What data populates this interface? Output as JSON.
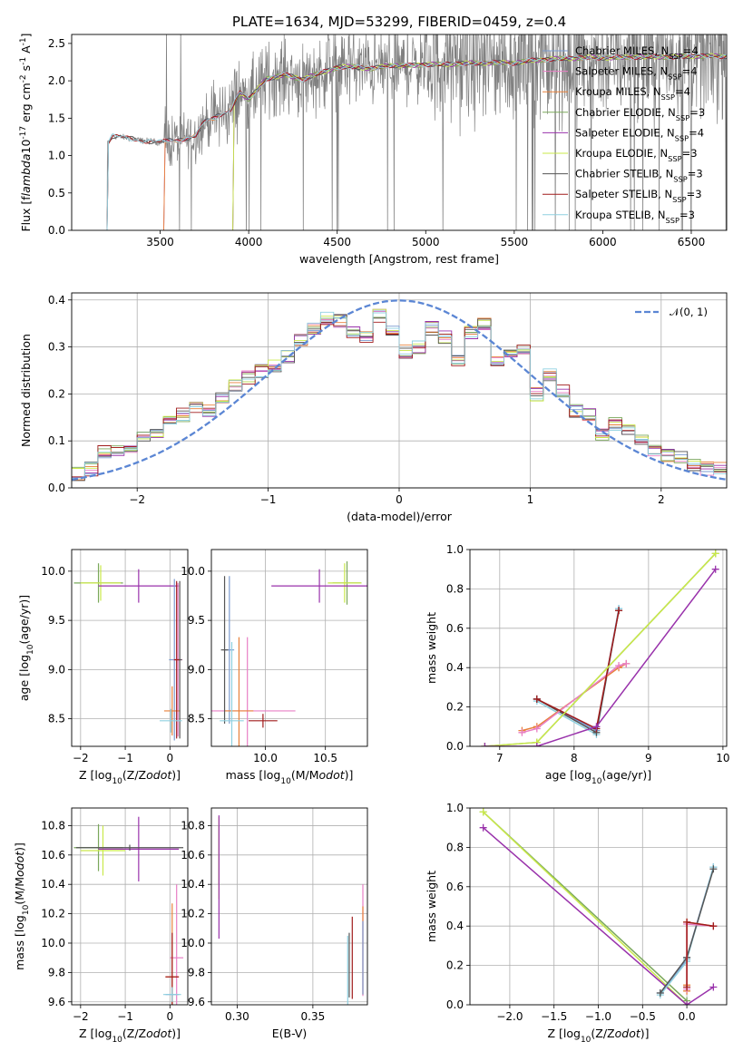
{
  "figure_title": "PLATE=1634, MJD=53299, FIBERID=0459, z=0.4",
  "colors": {
    "Chabrier MILES": "#7b9bd0",
    "Salpeter MILES": "#e87fc5",
    "Kroupa MILES": "#e8803a",
    "Chabrier ELODIE": "#7aa85a",
    "Salpeter ELODIE": "#9932ab",
    "Kroupa ELODIE": "#c9e84a",
    "Chabrier STELIB": "#555555",
    "Salpeter STELIB": "#a01c1c",
    "Kroupa STELIB": "#8fd0e0",
    "data": "#808080",
    "gauss": "#5b86d4"
  },
  "chart_data": [
    {
      "id": "spectrum",
      "type": "line",
      "title": "PLATE=1634, MJD=53299, FIBERID=0459, z=0.4",
      "xlabel": "wavelength [Angstrom, rest frame]",
      "ylabel": "Flux [f$_\\lambda$10$^{-17}$ erg cm$^{-2}$ s$^{-1}$ A$^{-1}$]",
      "xlim": [
        3000,
        6700
      ],
      "ylim": [
        0,
        2.62
      ],
      "xticks": [
        3500,
        4000,
        4500,
        5000,
        5500,
        6000,
        6500
      ],
      "yticks": [
        0.0,
        0.5,
        1.0,
        1.5,
        2.0,
        2.5
      ],
      "grid": false,
      "legend_position": "upper-right",
      "legend": [
        {
          "name": "Chabrier MILES",
          "label": "Chabrier MILES, N",
          "sub": "SSP",
          "rest": "=4"
        },
        {
          "name": "Salpeter MILES",
          "label": "Salpeter MILES, N",
          "sub": "SSP",
          "rest": "=4"
        },
        {
          "name": "Kroupa MILES",
          "label": "Kroupa MILES, N",
          "sub": "SSP",
          "rest": "=4"
        },
        {
          "name": "Chabrier ELODIE",
          "label": "Chabrier ELODIE, N",
          "sub": "SSP",
          "rest": "=3"
        },
        {
          "name": "Salpeter ELODIE",
          "label": "Salpeter ELODIE, N",
          "sub": "SSP",
          "rest": "=4"
        },
        {
          "name": "Kroupa ELODIE",
          "label": "Kroupa ELODIE, N",
          "sub": "SSP",
          "rest": "=3"
        },
        {
          "name": "Chabrier STELIB",
          "label": "Chabrier STELIB, N",
          "sub": "SSP",
          "rest": "=3"
        },
        {
          "name": "Salpeter STELIB",
          "label": "Salpeter STELIB, N",
          "sub": "SSP",
          "rest": "=3"
        },
        {
          "name": "Kroupa STELIB",
          "label": "Kroupa STELIB, N",
          "sub": "SSP",
          "rest": "=3"
        }
      ],
      "continuum_nodes": {
        "x": [
          3200,
          3230,
          3300,
          3400,
          3500,
          3600,
          3700,
          3750,
          3800,
          3900,
          3950,
          4000,
          4050,
          4100,
          4200,
          4300,
          4400,
          4500,
          4600,
          4700,
          4800,
          4900,
          5000,
          5100,
          5200,
          5300,
          5400,
          5500,
          5600,
          5700,
          5800,
          5900,
          6000,
          6100,
          6200,
          6300,
          6400,
          6500,
          6600
        ],
        "y": [
          1.15,
          1.26,
          1.24,
          1.2,
          1.18,
          1.21,
          1.26,
          1.45,
          1.5,
          1.62,
          1.85,
          1.75,
          1.88,
          2.03,
          2.08,
          2.02,
          2.1,
          2.18,
          2.19,
          2.16,
          2.21,
          2.2,
          2.22,
          2.22,
          2.23,
          2.24,
          2.24,
          2.24,
          2.27,
          2.29,
          2.3,
          2.31,
          2.31,
          2.31,
          2.32,
          2.32,
          2.32,
          2.33,
          2.33
        ]
      },
      "model_start_x": {
        "Chabrier MILES": 3520,
        "Salpeter MILES": 3520,
        "Kroupa MILES": 3520,
        "Chabrier ELODIE": 3910,
        "Salpeter ELODIE": 3910,
        "Kroupa ELODIE": 3910,
        "Chabrier STELIB": 3200,
        "Salpeter STELIB": 3200,
        "Kroupa STELIB": 3200
      },
      "data_range_x": [
        3200,
        6700
      ]
    },
    {
      "id": "residuals",
      "type": "line",
      "xlabel": "(data-model)/error",
      "ylabel": "Normed distribution",
      "xlim": [
        -2.5,
        2.5
      ],
      "ylim": [
        0,
        0.415
      ],
      "xticks": [
        -2,
        -1,
        0,
        1,
        2
      ],
      "yticks": [
        0.0,
        0.1,
        0.2,
        0.3,
        0.4
      ],
      "grid": true,
      "legend_position": "upper-right",
      "legend": [
        {
          "name": "gauss",
          "label": "𝒩(0, 1)"
        }
      ],
      "bins": {
        "edges_start": -2.5,
        "width": 0.1,
        "counts": [
          0.03,
          0.04,
          0.075,
          0.08,
          0.085,
          0.11,
          0.12,
          0.14,
          0.155,
          0.17,
          0.165,
          0.19,
          0.215,
          0.235,
          0.25,
          0.26,
          0.28,
          0.315,
          0.34,
          0.36,
          0.355,
          0.33,
          0.32,
          0.365,
          0.335,
          0.29,
          0.3,
          0.34,
          0.32,
          0.275,
          0.33,
          0.35,
          0.275,
          0.28,
          0.3,
          0.2,
          0.24,
          0.205,
          0.165,
          0.155,
          0.115,
          0.135,
          0.12,
          0.1,
          0.08,
          0.07,
          0.065,
          0.05,
          0.04,
          0.04
        ]
      }
    },
    {
      "id": "age_vs_Z",
      "type": "scatter",
      "xlabel": "Z [log$_{10}$(Z/Z$_\\odot$)]",
      "ylabel": "age  [log$_{10}$(age/yr)]",
      "xlim": [
        -2.2,
        0.4
      ],
      "ylim": [
        8.22,
        10.22
      ],
      "xticks": [
        -2,
        -1,
        0
      ],
      "yticks": [
        8.5,
        9.0,
        9.5,
        10.0
      ],
      "grid": true,
      "errorbars": [
        {
          "name": "Chabrier ELODIE",
          "x": -1.6,
          "y": 9.88,
          "xerr": 0.55,
          "yerr": 0.2
        },
        {
          "name": "Kroupa ELODIE",
          "x": -1.55,
          "y": 9.88,
          "xerr": 0.45,
          "yerr": 0.18
        },
        {
          "name": "Salpeter ELODIE",
          "x": -0.7,
          "y": 9.85,
          "xerr": 0.9,
          "yerr": 0.17
        },
        {
          "name": "Chabrier MILES",
          "x": 0.1,
          "y": 9.1,
          "xerr": 0.12,
          "yerr": 0.82
        },
        {
          "name": "Salpeter MILES",
          "x": 0.18,
          "y": 9.1,
          "xerr": 0.1,
          "yerr": 0.78
        },
        {
          "name": "Kroupa MILES",
          "x": 0.05,
          "y": 8.58,
          "xerr": 0.18,
          "yerr": 0.25
        },
        {
          "name": "Chabrier STELIB",
          "x": 0.22,
          "y": 9.1,
          "xerr": 0.05,
          "yerr": 0.8
        },
        {
          "name": "Salpeter STELIB",
          "x": 0.15,
          "y": 9.1,
          "xerr": 0.06,
          "yerr": 0.8
        },
        {
          "name": "Kroupa STELIB",
          "x": 0.02,
          "y": 8.48,
          "xerr": 0.25,
          "yerr": 0.12
        }
      ]
    },
    {
      "id": "age_vs_mass",
      "type": "scatter",
      "xlabel": "mass [log$_{10}$(M/M$_\\odot$)]",
      "ylabel": "",
      "xlim": [
        9.55,
        10.85
      ],
      "ylim": [
        8.22,
        10.22
      ],
      "xticks": [
        10.0,
        10.5
      ],
      "yticks": [
        8.5,
        9.0,
        9.5,
        10.0
      ],
      "grid": true,
      "errorbars": [
        {
          "name": "Chabrier ELODIE",
          "x": 10.68,
          "y": 9.88,
          "xerr": 0.12,
          "yerr": 0.22
        },
        {
          "name": "Kroupa ELODIE",
          "x": 10.66,
          "y": 9.88,
          "xerr": 0.14,
          "yerr": 0.2
        },
        {
          "name": "Salpeter ELODIE",
          "x": 10.45,
          "y": 9.85,
          "xerr": 0.4,
          "yerr": 0.17
        },
        {
          "name": "Chabrier MILES",
          "x": 9.7,
          "y": 9.2,
          "xerr": 0.04,
          "yerr": 0.75
        },
        {
          "name": "Salpeter MILES",
          "x": 9.85,
          "y": 8.58,
          "xerr": 0.4,
          "yerr": 0.75
        },
        {
          "name": "Kroupa MILES",
          "x": 9.78,
          "y": 8.58,
          "xerr": 0.12,
          "yerr": 0.75
        },
        {
          "name": "Chabrier STELIB",
          "x": 9.66,
          "y": 9.2,
          "xerr": 0.03,
          "yerr": 0.75
        },
        {
          "name": "Salpeter STELIB",
          "x": 9.98,
          "y": 8.48,
          "xerr": 0.12,
          "yerr": 0.07
        },
        {
          "name": "Kroupa STELIB",
          "x": 9.72,
          "y": 8.48,
          "xerr": 0.1,
          "yerr": 0.8
        }
      ]
    },
    {
      "id": "mass_weight_vs_age",
      "type": "line",
      "xlabel": "age  [log$_{10}$(age/yr)]",
      "ylabel": "mass weight",
      "xlim": [
        6.6,
        10.05
      ],
      "ylim": [
        0,
        1.0
      ],
      "xticks": [
        7,
        8,
        9,
        10
      ],
      "yticks": [
        0.0,
        0.2,
        0.4,
        0.6,
        0.8,
        1.0
      ],
      "grid": true,
      "series": [
        {
          "name": "Chabrier MILES",
          "x": [
            7.5,
            8.3,
            8.6
          ],
          "y": [
            0.24,
            0.08,
            0.7
          ]
        },
        {
          "name": "Kroupa STELIB",
          "x": [
            7.5,
            8.3,
            8.6
          ],
          "y": [
            0.23,
            0.06,
            0.7
          ]
        },
        {
          "name": "Chabrier STELIB",
          "x": [
            7.5,
            8.3,
            8.6
          ],
          "y": [
            0.24,
            0.07,
            0.69
          ]
        },
        {
          "name": "Kroupa MILES",
          "x": [
            7.3,
            7.5,
            8.6,
            8.7
          ],
          "y": [
            0.08,
            0.1,
            0.4,
            0.42
          ]
        },
        {
          "name": "Salpeter MILES",
          "x": [
            7.3,
            7.5,
            8.6,
            8.7
          ],
          "y": [
            0.07,
            0.09,
            0.41,
            0.42
          ]
        },
        {
          "name": "Salpeter STELIB",
          "x": [
            7.5,
            8.3,
            8.6
          ],
          "y": [
            0.24,
            0.09,
            0.69
          ]
        },
        {
          "name": "Chabrier ELODIE",
          "x": [
            6.8,
            7.5,
            9.9
          ],
          "y": [
            0.0,
            0.02,
            0.98
          ]
        },
        {
          "name": "Kroupa ELODIE",
          "x": [
            6.8,
            7.5,
            9.9
          ],
          "y": [
            0.0,
            0.02,
            0.98
          ]
        },
        {
          "name": "Salpeter ELODIE",
          "x": [
            6.8,
            7.5,
            8.3,
            9.9
          ],
          "y": [
            0.0,
            0.0,
            0.1,
            0.9
          ]
        }
      ]
    },
    {
      "id": "mass_vs_Z",
      "type": "scatter",
      "xlabel": "Z [log$_{10}$(Z/Z$_\\odot$)]",
      "ylabel": "mass [log$_{10}$(M/M$_\\odot$)]",
      "xlim": [
        -2.2,
        0.4
      ],
      "ylim": [
        9.58,
        10.92
      ],
      "xticks": [
        -2,
        -1,
        0
      ],
      "yticks": [
        9.6,
        9.8,
        10.0,
        10.2,
        10.4,
        10.6,
        10.8
      ],
      "grid": true,
      "errorbars": [
        {
          "name": "Chabrier ELODIE",
          "x": -1.6,
          "y": 10.65,
          "xerr": 0.55,
          "yerr": 0.16
        },
        {
          "name": "Kroupa ELODIE",
          "x": -1.5,
          "y": 10.63,
          "xerr": 0.5,
          "yerr": 0.17
        },
        {
          "name": "Salpeter ELODIE",
          "x": -0.7,
          "y": 10.64,
          "xerr": 0.9,
          "yerr": 0.22
        },
        {
          "name": "Chabrier STELIB",
          "x": -0.9,
          "y": 10.65,
          "xerr": 1.2,
          "yerr": 0.02
        },
        {
          "name": "Chabrier MILES",
          "x": 0.05,
          "y": 9.65,
          "xerr": 0.15,
          "yerr": 0.05
        },
        {
          "name": "Salpeter MILES",
          "x": 0.15,
          "y": 9.9,
          "xerr": 0.15,
          "yerr": 0.5
        },
        {
          "name": "Kroupa MILES",
          "x": 0.05,
          "y": 9.77,
          "xerr": 0.15,
          "yerr": 0.5
        },
        {
          "name": "Salpeter STELIB",
          "x": 0.05,
          "y": 9.77,
          "xerr": 0.15,
          "yerr": 0.3
        },
        {
          "name": "Kroupa STELIB",
          "x": 0.05,
          "y": 9.65,
          "xerr": 0.2,
          "yerr": 0.05
        }
      ]
    },
    {
      "id": "mass_vs_EBV",
      "type": "scatter",
      "xlabel": "E(B-V)",
      "ylabel": "",
      "xlim": [
        0.283,
        0.386
      ],
      "ylim": [
        9.58,
        10.92
      ],
      "xticks": [
        0.3,
        0.35
      ],
      "yticks": [
        9.6,
        9.8,
        10.0,
        10.2,
        10.4,
        10.6,
        10.8
      ],
      "grid": true,
      "errorbars": [
        {
          "name": "Chabrier ELODIE",
          "x": 0.288,
          "y": 10.6,
          "xerr": 0,
          "yerr": 0.2
        },
        {
          "name": "Kroupa ELODIE",
          "x": 0.288,
          "y": 10.58,
          "xerr": 0,
          "yerr": 0.28
        },
        {
          "name": "Salpeter ELODIE",
          "x": 0.288,
          "y": 10.45,
          "xerr": 0,
          "yerr": 0.42
        },
        {
          "name": "Kroupa STELIB",
          "x": 0.373,
          "y": 9.8,
          "xerr": 0,
          "yerr": 0.25
        },
        {
          "name": "Chabrier STELIB",
          "x": 0.374,
          "y": 9.85,
          "xerr": 0,
          "yerr": 0.22
        },
        {
          "name": "Salpeter STELIB",
          "x": 0.376,
          "y": 9.9,
          "xerr": 0,
          "yerr": 0.28
        },
        {
          "name": "Salpeter MILES",
          "x": 0.383,
          "y": 10.02,
          "xerr": 0,
          "yerr": 0.38
        },
        {
          "name": "Kroupa MILES",
          "x": 0.383,
          "y": 9.95,
          "xerr": 0,
          "yerr": 0.3
        },
        {
          "name": "Chabrier MILES",
          "x": 0.383,
          "y": 9.9,
          "xerr": 0,
          "yerr": 0.25
        }
      ]
    },
    {
      "id": "mass_weight_vs_Z",
      "type": "line",
      "xlabel": "Z [log$_{10}$(Z/Z$_\\odot$)]",
      "ylabel": "mass weight",
      "xlim": [
        -2.45,
        0.45
      ],
      "ylim": [
        0,
        1.0
      ],
      "xticks": [
        -2.0,
        -1.5,
        -1.0,
        -0.5,
        0.0
      ],
      "yticks": [
        0.0,
        0.2,
        0.4,
        0.6,
        0.8,
        1.0
      ],
      "grid": true,
      "series": [
        {
          "name": "Chabrier ELODIE",
          "x": [
            -2.3,
            0.0
          ],
          "y": [
            0.98,
            0.02
          ]
        },
        {
          "name": "Kroupa ELODIE",
          "x": [
            -2.3,
            0.0
          ],
          "y": [
            0.98,
            0.0
          ]
        },
        {
          "name": "Salpeter ELODIE",
          "x": [
            -2.3,
            0.0,
            0.3
          ],
          "y": [
            0.9,
            0.0,
            0.09
          ]
        },
        {
          "name": "Chabrier MILES",
          "x": [
            -0.3,
            0.0,
            0.0,
            0.3
          ],
          "y": [
            0.06,
            0.23,
            0.24,
            0.7
          ]
        },
        {
          "name": "Kroupa STELIB",
          "x": [
            -0.3,
            0.0,
            0.0,
            0.3
          ],
          "y": [
            0.05,
            0.22,
            0.23,
            0.7
          ]
        },
        {
          "name": "Chabrier STELIB",
          "x": [
            -0.3,
            0.0,
            0.3
          ],
          "y": [
            0.06,
            0.24,
            0.69
          ]
        },
        {
          "name": "Kroupa MILES",
          "x": [
            0.0,
            0.0,
            0.0,
            0.3
          ],
          "y": [
            0.07,
            0.1,
            0.42,
            0.4
          ]
        },
        {
          "name": "Salpeter MILES",
          "x": [
            0.0,
            0.0,
            0.3
          ],
          "y": [
            0.08,
            0.41,
            0.4
          ]
        },
        {
          "name": "Salpeter STELIB",
          "x": [
            0.0,
            0.0,
            0.3
          ],
          "y": [
            0.09,
            0.42,
            0.4
          ]
        }
      ]
    }
  ]
}
